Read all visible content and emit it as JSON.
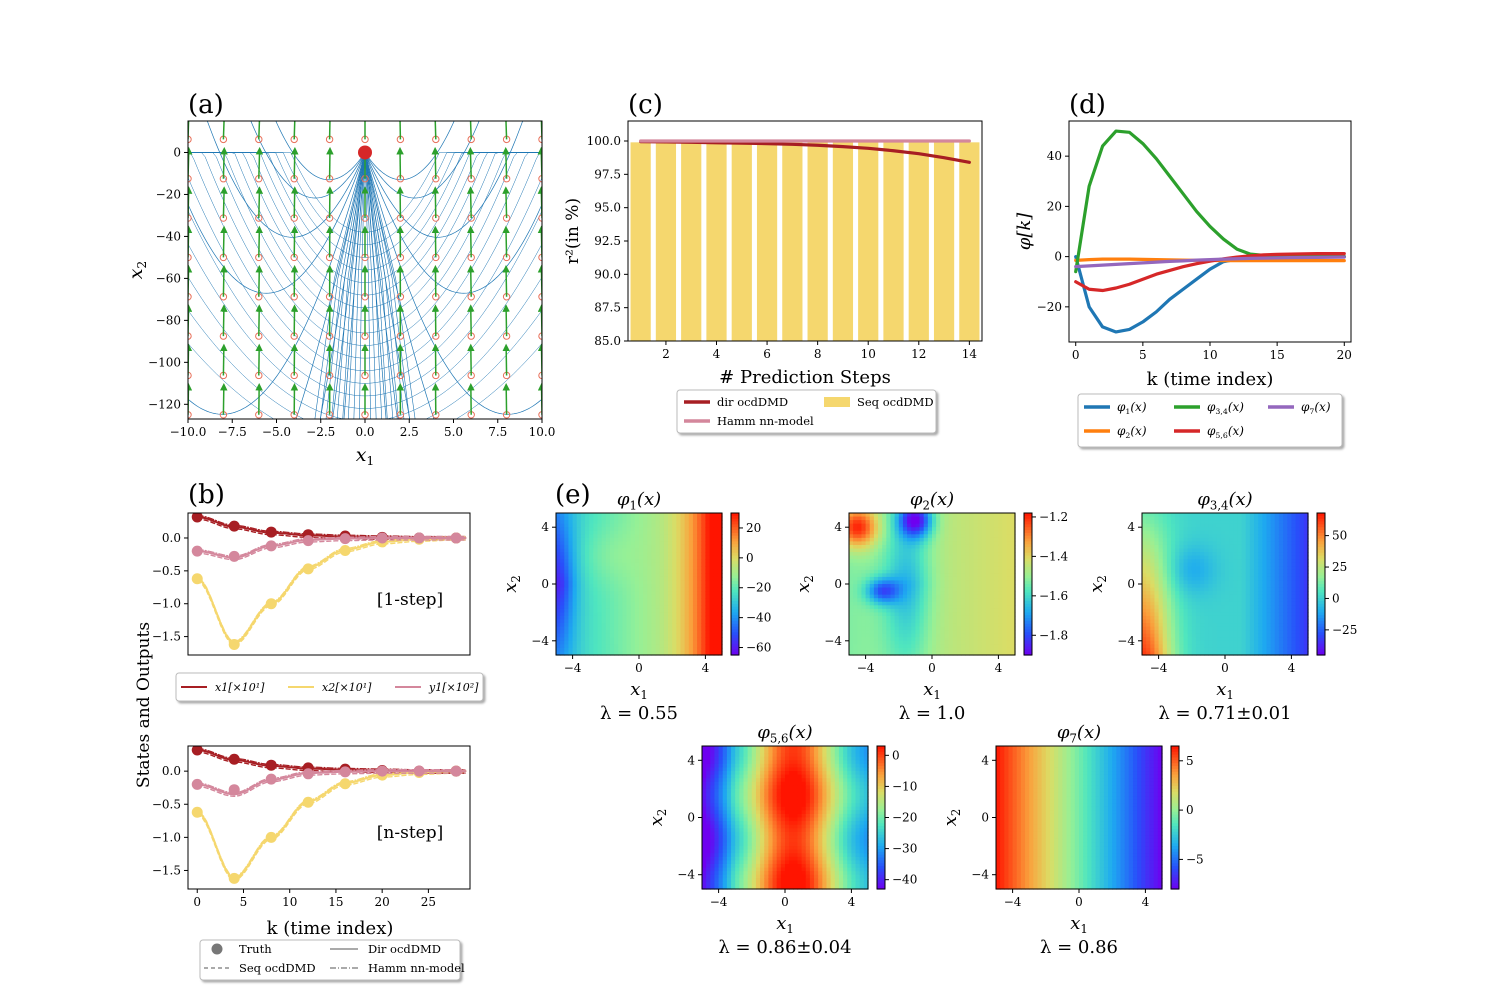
{
  "chart_data": [
    {
      "panel": "(a)",
      "type": "scatter",
      "xlabel": "x1",
      "ylabel": "x2",
      "xlim": [
        -10,
        10
      ],
      "ylim": [
        -127,
        15
      ],
      "xticks": [
        "−10.0",
        "−7.5",
        "−5.0",
        "−2.5",
        "0.0",
        "2.5",
        "5.0",
        "7.5",
        "10.0"
      ],
      "xtick_values": [
        -10,
        -7.5,
        -5,
        -2.5,
        0,
        2.5,
        5,
        7.5,
        10
      ],
      "yticks": [
        "0",
        "−20",
        "−40",
        "−60",
        "−80",
        "−100",
        "−120"
      ],
      "ytick_values": [
        0,
        -20,
        -40,
        -60,
        -80,
        -100,
        -120
      ],
      "fixed_point": [
        0,
        0
      ],
      "grid_x": [
        -10,
        -8,
        -6,
        -4,
        -2,
        0,
        2,
        4,
        6,
        8,
        10
      ],
      "grid_y": [
        -125,
        -106.25,
        -87.5,
        -68.75,
        -50,
        -31.25,
        -12.5,
        6.25
      ],
      "arrow_scale": 0.18,
      "stream_a": [
        -1.6,
        -1.3,
        -1.0,
        -0.8,
        -0.6,
        -0.45,
        -0.3,
        -0.2,
        -0.1,
        0.1,
        0.2,
        0.3,
        0.45,
        0.6,
        0.8,
        1.0,
        1.3,
        1.6
      ],
      "colors": {
        "arrow": "#2ca02c",
        "marker": "#e8705a",
        "stream": "#1f77b4",
        "fixed": "#d62728"
      }
    },
    {
      "panel": "(c)",
      "type": "bar",
      "xlabel": "# Prediction Steps",
      "ylabel": "r²(in %)",
      "xlim": [
        0.5,
        14.5
      ],
      "ylim": [
        85,
        101.5
      ],
      "xticks": [
        "2",
        "4",
        "6",
        "8",
        "10",
        "12",
        "14"
      ],
      "xtick_values": [
        2,
        4,
        6,
        8,
        10,
        12,
        14
      ],
      "yticks": [
        "85.0",
        "87.5",
        "90.0",
        "92.5",
        "95.0",
        "97.5",
        "100.0"
      ],
      "ytick_values": [
        85,
        87.5,
        90,
        92.5,
        95,
        97.5,
        100
      ],
      "x": [
        1,
        2,
        3,
        4,
        5,
        6,
        7,
        8,
        9,
        10,
        11,
        12,
        13,
        14
      ],
      "series": [
        {
          "name": "Seq ocdDMD",
          "kind": "bar",
          "color": "#f5d76e",
          "values": [
            99.9,
            99.9,
            99.9,
            99.9,
            99.9,
            99.9,
            99.9,
            99.9,
            99.9,
            99.9,
            99.9,
            99.9,
            99.9,
            99.9
          ]
        },
        {
          "name": "dir ocdDMD",
          "kind": "line",
          "color": "#a71e23",
          "values": [
            99.95,
            99.93,
            99.9,
            99.87,
            99.84,
            99.8,
            99.75,
            99.68,
            99.58,
            99.45,
            99.27,
            99.05,
            98.75,
            98.4
          ]
        },
        {
          "name": "Hamm nn-model",
          "kind": "line",
          "color": "#d4879c",
          "values": [
            100.0,
            100.0,
            100.0,
            100.0,
            100.0,
            100.0,
            100.0,
            100.0,
            100.0,
            100.0,
            100.0,
            100.0,
            100.0,
            100.0
          ]
        }
      ],
      "legend": {
        "location": "below",
        "entries": [
          "dir ocdDMD",
          "Seq ocdDMD",
          "Hamm nn-model"
        ]
      }
    },
    {
      "panel": "(d)",
      "type": "line",
      "xlabel": "k (time index)",
      "ylabel": "φ[k]",
      "xlim": [
        -0.5,
        20.5
      ],
      "ylim": [
        -34,
        54
      ],
      "xticks": [
        "0",
        "5",
        "10",
        "15",
        "20"
      ],
      "xtick_values": [
        0,
        5,
        10,
        15,
        20
      ],
      "yticks": [
        "−20",
        "0",
        "20",
        "40"
      ],
      "ytick_values": [
        -20,
        0,
        20,
        40
      ],
      "x": [
        0,
        1,
        2,
        3,
        4,
        5,
        6,
        7,
        8,
        9,
        10,
        11,
        12,
        13,
        14,
        15,
        16,
        17,
        18,
        19,
        20
      ],
      "series": [
        {
          "name": "φ1(x)",
          "color": "#1f77b4",
          "values": [
            0,
            -20,
            -28,
            -30,
            -29,
            -26,
            -22,
            -17,
            -13,
            -9,
            -5,
            -2,
            -1,
            -0.5,
            -0.2,
            0,
            0,
            0,
            0,
            0,
            0
          ]
        },
        {
          "name": "φ2(x)",
          "color": "#ff7f0e",
          "values": [
            -1.5,
            -1.2,
            -1,
            -1,
            -1,
            -1.1,
            -1.2,
            -1.3,
            -1.4,
            -1.5,
            -1.5,
            -1.6,
            -1.6,
            -1.6,
            -1.6,
            -1.6,
            -1.6,
            -1.6,
            -1.6,
            -1.6,
            -1.6
          ]
        },
        {
          "name": "φ3,4(x)",
          "color": "#2ca02c",
          "values": [
            -6,
            28,
            44,
            50,
            49.5,
            45,
            39,
            32,
            25,
            18,
            12,
            7,
            3,
            1,
            0.5,
            0.3,
            0.1,
            0,
            0,
            0,
            0
          ]
        },
        {
          "name": "φ5,6(x)",
          "color": "#d62728",
          "values": [
            -10,
            -13,
            -13.5,
            -12.5,
            -11,
            -9,
            -7,
            -5.5,
            -4,
            -2.8,
            -1.8,
            -0.9,
            -0.2,
            0.3,
            0.7,
            0.9,
            1.0,
            1.1,
            1.2,
            1.2,
            1.2
          ]
        },
        {
          "name": "φ7(x)",
          "color": "#9467bd",
          "values": [
            -4,
            -3.7,
            -3.4,
            -3.1,
            -2.8,
            -2.5,
            -2.2,
            -1.9,
            -1.7,
            -1.4,
            -1.2,
            -1.0,
            -0.85,
            -0.7,
            -0.6,
            -0.5,
            -0.4,
            -0.35,
            -0.3,
            -0.25,
            -0.2
          ]
        }
      ],
      "legend": {
        "location": "below",
        "entries": [
          "φ1(x)",
          "φ3,4(x)",
          "φ7(x)",
          "φ2(x)",
          "φ5,6(x)"
        ]
      }
    },
    {
      "panel": "(b)",
      "type": "line",
      "ylabel": "States and Outputs",
      "xlabel": "k (time index)",
      "xlim": [
        -1,
        29.5
      ],
      "ylim": [
        -1.78,
        0.38
      ],
      "xticks": [
        "0",
        "5",
        "10",
        "15",
        "20",
        "25"
      ],
      "xtick_values": [
        0,
        5,
        10,
        15,
        20,
        25
      ],
      "yticks": [
        "0.0",
        "−0.5",
        "−1.0",
        "−1.5"
      ],
      "ytick_values": [
        0,
        -0.5,
        -1,
        -1.5
      ],
      "subplots": [
        {
          "annotation": "[1-step]",
          "truth_k": [
            0,
            4,
            8,
            12,
            16,
            20,
            24,
            28
          ],
          "series": [
            {
              "name": "x1[×10¹]",
              "color": "#a71e23",
              "values": [
                0.32,
                0.17,
                0.08,
                0.04,
                0.02,
                0.01,
                0.0,
                0.0
              ],
              "truth": [
                0.32,
                0.18,
                0.09,
                0.05,
                0.03,
                0.01,
                0.0,
                0.0
              ]
            },
            {
              "name": "x2[×10¹]",
              "color": "#f5d76e",
              "values": [
                -0.62,
                -1.6,
                -1.0,
                -0.45,
                -0.18,
                -0.06,
                -0.02,
                0.0
              ],
              "truth": [
                -0.62,
                -1.62,
                -1.0,
                -0.47,
                -0.19,
                -0.06,
                -0.02,
                0.0
              ]
            },
            {
              "name": "y1[×10²]",
              "color": "#d4879c",
              "values": [
                -0.2,
                -0.3,
                -0.12,
                -0.03,
                -0.01,
                0.0,
                0.0,
                0.0
              ],
              "truth": [
                -0.2,
                -0.28,
                -0.12,
                -0.04,
                -0.01,
                0.0,
                0.0,
                0.0
              ]
            }
          ]
        },
        {
          "annotation": "[n-step]",
          "truth_k": [
            0,
            4,
            8,
            12,
            16,
            20,
            24,
            28
          ],
          "series": [
            {
              "name": "x1[×10¹]",
              "color": "#a71e23",
              "values": [
                0.32,
                0.17,
                0.08,
                0.04,
                0.02,
                0.01,
                0.0,
                0.0
              ],
              "truth": [
                0.32,
                0.18,
                0.09,
                0.05,
                0.03,
                0.01,
                0.0,
                0.0
              ]
            },
            {
              "name": "x2[×10¹]",
              "color": "#f5d76e",
              "values": [
                -0.62,
                -1.62,
                -1.0,
                -0.46,
                -0.18,
                -0.06,
                -0.02,
                0.0
              ],
              "truth": [
                -0.62,
                -1.62,
                -1.0,
                -0.47,
                -0.19,
                -0.06,
                -0.02,
                0.0
              ]
            },
            {
              "name": "y1[×10²]",
              "color": "#d4879c",
              "values": [
                -0.2,
                -0.35,
                -0.13,
                -0.03,
                -0.01,
                0.0,
                0.0,
                0.0
              ],
              "truth": [
                -0.2,
                -0.28,
                -0.12,
                -0.04,
                -0.01,
                0.0,
                0.0,
                0.0
              ]
            }
          ]
        }
      ],
      "legend_states": [
        "x1[×10¹]",
        "x2[×10¹]",
        "y1[×10²]"
      ],
      "legend_methods": [
        "Truth",
        "Dir ocdDMD",
        "Seq ocdDMD",
        "Hamm nn-model"
      ]
    },
    {
      "panel": "(e)",
      "type": "heatmap",
      "xlabel": "x1",
      "ylabel": "x2",
      "xlim": [
        -5,
        5
      ],
      "ylim": [
        -5,
        5
      ],
      "xticks": [
        "−4",
        "0",
        "4"
      ],
      "yticks": [
        "−4",
        "0",
        "4"
      ],
      "tick_values": [
        -4,
        0,
        4
      ],
      "maps": [
        {
          "title": "φ1(x)",
          "lambda": "λ = 0.55",
          "vmin": -65,
          "vmax": 30,
          "cticks": [
            "20",
            "0",
            "−20",
            "−40",
            "−60"
          ],
          "ctick_values": [
            20,
            0,
            -20,
            -40,
            -60
          ]
        },
        {
          "title": "φ2(x)",
          "lambda": "λ = 1.0",
          "vmin": -1.9,
          "vmax": -1.18,
          "cticks": [
            "−1.2",
            "−1.4",
            "−1.6",
            "−1.8"
          ],
          "ctick_values": [
            -1.2,
            -1.4,
            -1.6,
            -1.8
          ]
        },
        {
          "title": "φ3,4(x)",
          "lambda": "λ = 0.71±0.01",
          "vmin": -45,
          "vmax": 68,
          "cticks": [
            "50",
            "25",
            "0",
            "−25"
          ],
          "ctick_values": [
            50,
            25,
            0,
            -25
          ]
        },
        {
          "title": "φ5,6(x)",
          "lambda": "λ = 0.86±0.04",
          "vmin": -43,
          "vmax": 3,
          "cticks": [
            "0",
            "−10",
            "−20",
            "−30",
            "−40"
          ],
          "ctick_values": [
            0,
            -10,
            -20,
            -30,
            -40
          ]
        },
        {
          "title": "φ7(x)",
          "lambda": "λ = 0.86",
          "vmin": -8,
          "vmax": 6.5,
          "cticks": [
            "5",
            "0",
            "−5"
          ],
          "ctick_values": [
            5,
            0,
            -5
          ]
        }
      ]
    }
  ]
}
